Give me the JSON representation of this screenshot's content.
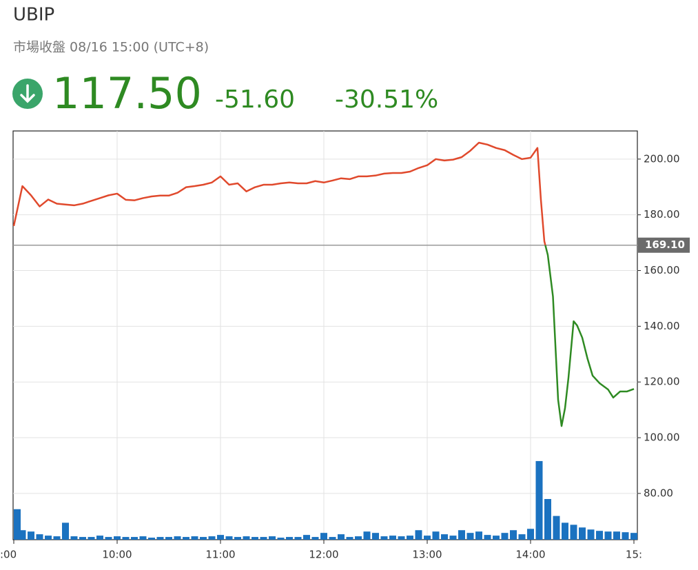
{
  "chart_data": {
    "type": "line",
    "title": "UBIP",
    "subtitle": "市場收盤 08/16 15:00 (UTC+8)",
    "quote": {
      "value": 117.5,
      "label": "117.50"
    },
    "change": {
      "value": -51.6,
      "label": "-51.60"
    },
    "change_pct": {
      "value": -30.51,
      "label": "-30.51%"
    },
    "reference": {
      "value": 169.1,
      "label": "169.10"
    },
    "color_above": "#e0492c",
    "color_below": "#2e8a22",
    "quote_color": "#2e8a22",
    "grid": true,
    "x": [
      "09:00",
      "09:05",
      "09:10",
      "09:15",
      "09:20",
      "09:25",
      "09:30",
      "09:35",
      "09:40",
      "09:45",
      "09:50",
      "09:55",
      "10:00",
      "10:05",
      "10:10",
      "10:15",
      "10:20",
      "10:25",
      "10:30",
      "10:35",
      "10:40",
      "10:45",
      "10:50",
      "10:55",
      "11:00",
      "11:05",
      "11:10",
      "11:15",
      "11:20",
      "11:25",
      "11:30",
      "11:35",
      "11:40",
      "11:45",
      "11:50",
      "11:55",
      "12:00",
      "12:05",
      "12:10",
      "12:15",
      "12:20",
      "12:25",
      "12:30",
      "12:35",
      "12:40",
      "12:45",
      "12:50",
      "12:55",
      "13:00",
      "13:05",
      "13:10",
      "13:15",
      "13:20",
      "13:25",
      "13:30",
      "13:35",
      "13:40",
      "13:45",
      "13:50",
      "13:55",
      "14:00",
      "14:04",
      "14:06",
      "14:08",
      "14:10",
      "14:13",
      "14:16",
      "14:18",
      "14:20",
      "14:22",
      "14:25",
      "14:27",
      "14:30",
      "14:33",
      "14:36",
      "14:40",
      "14:45",
      "14:48",
      "14:52",
      "14:56",
      "15:00"
    ],
    "values": [
      176,
      190.3,
      187,
      183,
      185.5,
      184,
      183.7,
      183.4,
      184,
      185,
      186,
      187,
      187.6,
      185.4,
      185.2,
      186,
      186.6,
      186.9,
      186.9,
      187.9,
      189.9,
      190.3,
      190.8,
      191.6,
      193.8,
      190.8,
      191.3,
      188.4,
      189.9,
      190.8,
      190.8,
      191.3,
      191.6,
      191.3,
      191.3,
      192.1,
      191.6,
      192.3,
      193.1,
      192.8,
      193.8,
      193.8,
      194.1,
      194.8,
      195,
      195,
      195.5,
      196.8,
      197.8,
      200,
      199.5,
      199.8,
      200.7,
      203,
      205.9,
      205.2,
      204,
      203.2,
      201.5,
      200,
      200.5,
      204,
      185.4,
      170.5,
      165.6,
      150.7,
      113.6,
      104.2,
      110.6,
      121.5,
      141.8,
      140.3,
      135.9,
      128.5,
      122.3,
      119.6,
      117.3,
      114.4,
      116.6,
      116.6,
      117.5
    ],
    "xlim": [
      "09:00",
      "15:00"
    ],
    "xticks": [
      {
        "value": "09:00",
        "label": ":00"
      },
      "10:00",
      "11:00",
      "12:00",
      "13:00",
      "14:00",
      {
        "value": "15:00",
        "label": "15:"
      }
    ],
    "ylim": [
      63.4,
      210.1
    ],
    "yticks": [
      {
        "value": 80,
        "label": "80.00"
      },
      {
        "value": 100,
        "label": "100.00"
      },
      {
        "value": 120,
        "label": "120.00"
      },
      {
        "value": 140,
        "label": "140.00"
      },
      {
        "value": 160,
        "label": "160.00"
      },
      {
        "value": 180,
        "label": "180.00"
      },
      {
        "value": 200,
        "label": "200.00"
      }
    ],
    "volume": {
      "color": "#1b72c0",
      "ylim": [
        0,
        120
      ],
      "x": [
        "09:00",
        "09:05",
        "09:10",
        "09:15",
        "09:20",
        "09:25",
        "09:30",
        "09:35",
        "09:40",
        "09:45",
        "09:50",
        "09:55",
        "10:00",
        "10:05",
        "10:10",
        "10:15",
        "10:20",
        "10:25",
        "10:30",
        "10:35",
        "10:40",
        "10:45",
        "10:50",
        "10:55",
        "11:00",
        "11:05",
        "11:10",
        "11:15",
        "11:20",
        "11:25",
        "11:30",
        "11:35",
        "11:40",
        "11:45",
        "11:50",
        "11:55",
        "12:00",
        "12:05",
        "12:10",
        "12:15",
        "12:20",
        "12:25",
        "12:30",
        "12:35",
        "12:40",
        "12:45",
        "12:50",
        "12:55",
        "13:00",
        "13:05",
        "13:10",
        "13:15",
        "13:20",
        "13:25",
        "13:30",
        "13:35",
        "13:40",
        "13:45",
        "13:50",
        "13:55",
        "14:00",
        "14:05",
        "14:10",
        "14:15",
        "14:20",
        "14:25",
        "14:30",
        "14:35",
        "14:40",
        "14:45",
        "14:50",
        "14:55",
        "15:00"
      ],
      "values": [
        45,
        14,
        12,
        8,
        6,
        5,
        25,
        5,
        4,
        4,
        6,
        4,
        5,
        4,
        4,
        5,
        3,
        4,
        4,
        5,
        4,
        5,
        4,
        5,
        7,
        5,
        4,
        5,
        4,
        4,
        5,
        3,
        4,
        4,
        7,
        4,
        10,
        4,
        8,
        4,
        5,
        12,
        10,
        5,
        6,
        5,
        6,
        14,
        6,
        12,
        8,
        6,
        14,
        10,
        12,
        7,
        6,
        10,
        14,
        8,
        16,
        116,
        60,
        35,
        25,
        22,
        18,
        15,
        13,
        12,
        12,
        11,
        10
      ]
    }
  }
}
